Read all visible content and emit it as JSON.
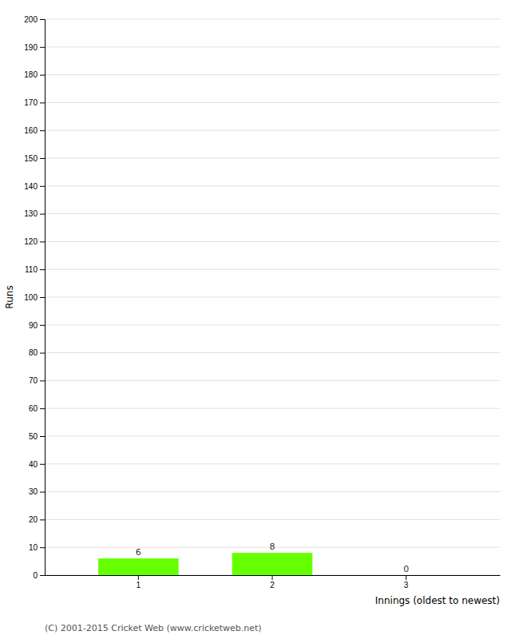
{
  "chart_data": {
    "type": "bar",
    "categories": [
      1,
      2,
      3
    ],
    "values": [
      6,
      8,
      0
    ],
    "color": "#66ff00",
    "xlabel": "Innings (oldest to newest)",
    "ylabel": "Runs",
    "ylim": [
      0,
      200
    ],
    "yticks": [
      0,
      10,
      20,
      30,
      40,
      50,
      60,
      70,
      80,
      90,
      100,
      110,
      120,
      130,
      140,
      150,
      160,
      170,
      180,
      190,
      200
    ],
    "grid": true,
    "data_labels": true,
    "annotations": [
      "(C) 2001-2015 Cricket Web (www.cricketweb.net)"
    ]
  }
}
